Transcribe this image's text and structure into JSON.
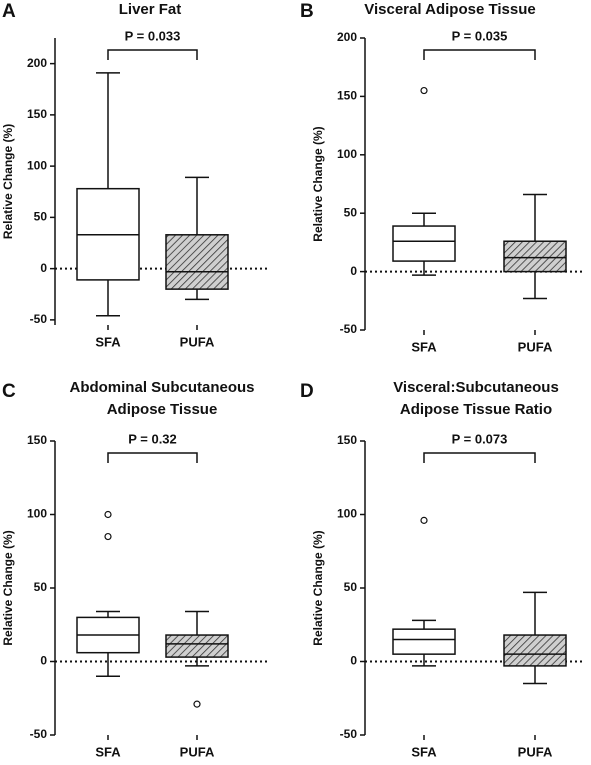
{
  "chart_data": [
    {
      "type": "box",
      "panel": "A",
      "title": [
        "Liver Fat"
      ],
      "ylabel": "Relative Change (%)",
      "annotation": "P = 0.033",
      "categories": [
        "SFA",
        "PUFA"
      ],
      "hatch": [
        false,
        true
      ],
      "ref_line": 0,
      "boxes": [
        {
          "min": -46,
          "q1": -11,
          "median": 33,
          "q3": 78,
          "max": 191,
          "outliers": []
        },
        {
          "min": -30,
          "q1": -20,
          "median": -3,
          "q3": 33,
          "max": 89,
          "outliers": []
        }
      ],
      "ylim": [
        -55,
        225
      ],
      "yticks": [
        -50,
        0,
        50,
        100,
        150,
        200
      ]
    },
    {
      "type": "box",
      "panel": "B",
      "title": [
        "Visceral Adipose Tissue"
      ],
      "ylabel": "Relative Change (%)",
      "annotation": "P = 0.035",
      "categories": [
        "SFA",
        "PUFA"
      ],
      "hatch": [
        false,
        true
      ],
      "ref_line": 0,
      "boxes": [
        {
          "min": -3,
          "q1": 9,
          "median": 26,
          "q3": 39,
          "max": 50,
          "outliers": [
            155
          ]
        },
        {
          "min": -23,
          "q1": 0,
          "median": 12,
          "q3": 26,
          "max": 66,
          "outliers": []
        }
      ],
      "ylim": [
        -50,
        200
      ],
      "yticks": [
        -50,
        0,
        50,
        100,
        150,
        200
      ]
    },
    {
      "type": "box",
      "panel": "C",
      "title": [
        "Abdominal Subcutaneous",
        "Adipose Tissue"
      ],
      "ylabel": "Relative Change (%)",
      "annotation": "P = 0.32",
      "categories": [
        "SFA",
        "PUFA"
      ],
      "hatch": [
        false,
        true
      ],
      "ref_line": 0,
      "boxes": [
        {
          "min": -10,
          "q1": 6,
          "median": 18,
          "q3": 30,
          "max": 34,
          "outliers": [
            100,
            85
          ]
        },
        {
          "min": -3,
          "q1": 3,
          "median": 12,
          "q3": 18,
          "max": 34,
          "outliers": [
            -29
          ]
        }
      ],
      "ylim": [
        -50,
        150
      ],
      "yticks": [
        -50,
        0,
        50,
        100,
        150
      ]
    },
    {
      "type": "box",
      "panel": "D",
      "title": [
        "Visceral:Subcutaneous",
        "Adipose Tissue Ratio"
      ],
      "ylabel": "Relative Change (%)",
      "annotation": "P = 0.073",
      "categories": [
        "SFA",
        "PUFA"
      ],
      "hatch": [
        false,
        true
      ],
      "ref_line": 0,
      "boxes": [
        {
          "min": -3,
          "q1": 5,
          "median": 15,
          "q3": 22,
          "max": 28,
          "outliers": [
            96
          ]
        },
        {
          "min": -15,
          "q1": -3,
          "median": 5,
          "q3": 18,
          "max": 47,
          "outliers": []
        }
      ],
      "ylim": [
        -50,
        150
      ],
      "yticks": [
        -50,
        0,
        50,
        100,
        150
      ]
    }
  ]
}
